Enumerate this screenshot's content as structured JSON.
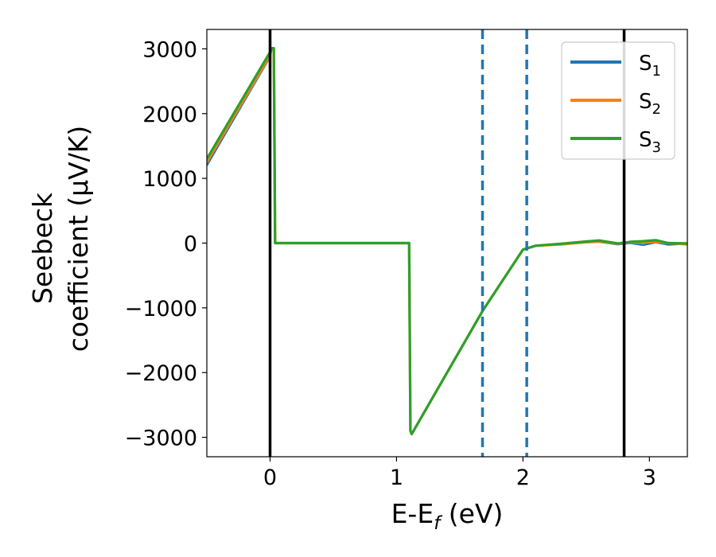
{
  "chart_data": {
    "type": "line",
    "xlabel_main": "E-E",
    "xlabel_sub": "f",
    "xlabel_unit": " (eV)",
    "ylabel_line1": "Seebeck",
    "ylabel_line2": "coefficient  (μV/K)",
    "xlim": [
      -0.5,
      3.3
    ],
    "ylim": [
      -3300,
      3300
    ],
    "xticks": [
      0,
      1,
      2,
      3
    ],
    "xtick_labels": [
      "0",
      "1",
      "2",
      "3"
    ],
    "yticks": [
      3000,
      2000,
      1000,
      0,
      -1000,
      -2000,
      -3000
    ],
    "ytick_labels": [
      "3000",
      "2000",
      "1000",
      "0",
      "−1000",
      "−2000",
      "−3000"
    ],
    "grid": false,
    "legend_position": "top-right",
    "vlines_solid": [
      0.0,
      2.8
    ],
    "vlines_dashed": [
      1.68,
      2.03
    ],
    "series": [
      {
        "name": "S",
        "sub": "1",
        "color": "#1f77b4",
        "x": [
          -0.5,
          0.0,
          0.01,
          0.03,
          0.04,
          1.1,
          1.11,
          1.12,
          1.68,
          2.0,
          2.1,
          2.3,
          2.5,
          2.6,
          2.75,
          2.85,
          2.95,
          3.05,
          3.15,
          3.3
        ],
        "y": [
          1200,
          2880,
          3000,
          3000,
          0,
          0,
          -2900,
          -2950,
          -1050,
          -100,
          -40,
          -15,
          10,
          20,
          -20,
          0,
          -30,
          10,
          -25,
          -10
        ]
      },
      {
        "name": "S",
        "sub": "2",
        "color": "#ff7f0e",
        "x": [
          -0.5,
          0.0,
          0.01,
          0.03,
          0.04,
          1.1,
          1.11,
          1.12,
          1.68,
          2.0,
          2.1,
          2.3,
          2.5,
          2.6,
          2.75,
          2.85,
          2.95,
          3.05,
          3.15,
          3.3
        ],
        "y": [
          1250,
          2900,
          3000,
          3000,
          0,
          0,
          -2900,
          -2950,
          -1050,
          -100,
          -40,
          -20,
          15,
          30,
          -10,
          10,
          10,
          20,
          0,
          -20
        ]
      },
      {
        "name": "S",
        "sub": "3",
        "color": "#2ca02c",
        "x": [
          -0.5,
          0.0,
          0.01,
          0.03,
          0.04,
          1.1,
          1.11,
          1.12,
          1.68,
          2.0,
          2.1,
          2.3,
          2.5,
          2.6,
          2.75,
          2.85,
          2.95,
          3.05,
          3.15,
          3.3
        ],
        "y": [
          1300,
          2950,
          3010,
          3010,
          0,
          0,
          -2900,
          -2950,
          -1050,
          -100,
          -40,
          -10,
          25,
          40,
          -5,
          20,
          30,
          45,
          0,
          -5
        ]
      }
    ]
  }
}
